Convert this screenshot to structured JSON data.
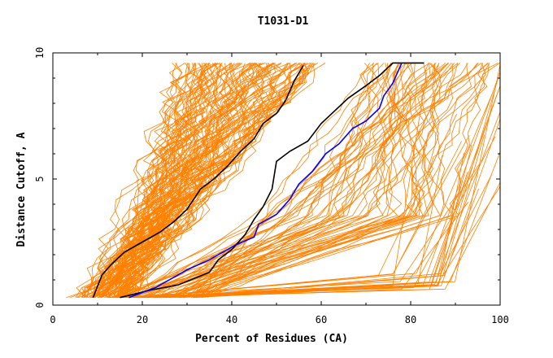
{
  "chart_data": {
    "type": "line",
    "title": "T1031-D1",
    "xlabel": "Percent of Residues (CA)",
    "ylabel": "Distance Cutoff, A",
    "xlim": [
      0,
      100
    ],
    "ylim": [
      0,
      10
    ],
    "x_ticks": [
      0,
      20,
      40,
      60,
      80,
      100
    ],
    "y_ticks": [
      0,
      5,
      10
    ],
    "grid": false,
    "legend": "none",
    "colors": {
      "ensemble": "#ff8000",
      "highlight_black": "#000000",
      "highlight_blue": "#0000ff",
      "axis": "#000000"
    },
    "series": [
      {
        "color": "#000000",
        "points": [
          [
            9,
            0.3
          ],
          [
            11,
            1.2
          ],
          [
            13,
            1.6
          ],
          [
            16,
            2.1
          ],
          [
            20,
            2.5
          ],
          [
            24,
            2.9
          ],
          [
            27,
            3.3
          ],
          [
            30,
            3.8
          ],
          [
            33,
            4.6
          ],
          [
            36,
            5.0
          ],
          [
            39,
            5.5
          ],
          [
            42,
            6.1
          ],
          [
            45,
            6.6
          ],
          [
            47,
            7.2
          ],
          [
            50,
            7.6
          ],
          [
            52,
            8.1
          ],
          [
            54,
            8.9
          ],
          [
            56,
            9.5
          ]
        ]
      },
      {
        "color": "#000000",
        "points": [
          [
            15,
            0.3
          ],
          [
            22,
            0.6
          ],
          [
            28,
            0.8
          ],
          [
            35,
            1.3
          ],
          [
            37,
            1.8
          ],
          [
            40,
            2.2
          ],
          [
            43,
            2.8
          ],
          [
            45,
            3.4
          ],
          [
            47,
            3.9
          ],
          [
            49,
            4.6
          ],
          [
            50,
            5.7
          ],
          [
            53,
            6.1
          ],
          [
            57,
            6.5
          ],
          [
            60,
            7.2
          ],
          [
            63,
            7.7
          ],
          [
            66,
            8.2
          ],
          [
            70,
            8.7
          ],
          [
            73,
            9.1
          ],
          [
            76,
            9.6
          ],
          [
            83,
            9.6
          ]
        ]
      },
      {
        "color": "#0000ff",
        "points": [
          [
            17,
            0.3
          ],
          [
            23,
            0.7
          ],
          [
            27,
            1.1
          ],
          [
            30,
            1.4
          ],
          [
            35,
            1.8
          ],
          [
            41,
            2.4
          ],
          [
            45,
            2.7
          ],
          [
            46,
            3.2
          ],
          [
            50,
            3.6
          ],
          [
            53,
            4.2
          ],
          [
            55,
            4.8
          ],
          [
            58,
            5.3
          ],
          [
            61,
            6.0
          ],
          [
            64,
            6.4
          ],
          [
            67,
            7.0
          ],
          [
            70,
            7.3
          ],
          [
            73,
            7.8
          ],
          [
            74,
            8.3
          ],
          [
            76,
            8.8
          ],
          [
            78,
            9.6
          ]
        ]
      }
    ]
  }
}
